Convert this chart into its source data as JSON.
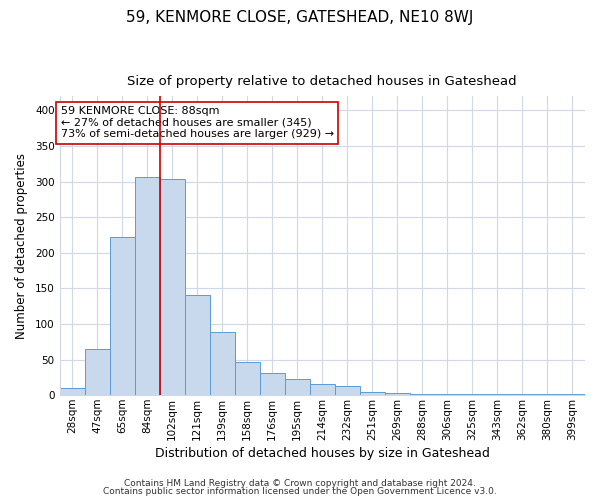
{
  "title": "59, KENMORE CLOSE, GATESHEAD, NE10 8WJ",
  "subtitle": "Size of property relative to detached houses in Gateshead",
  "xlabel": "Distribution of detached houses by size in Gateshead",
  "ylabel": "Number of detached properties",
  "bar_labels": [
    "28sqm",
    "47sqm",
    "65sqm",
    "84sqm",
    "102sqm",
    "121sqm",
    "139sqm",
    "158sqm",
    "176sqm",
    "195sqm",
    "214sqm",
    "232sqm",
    "251sqm",
    "269sqm",
    "288sqm",
    "306sqm",
    "325sqm",
    "343sqm",
    "362sqm",
    "380sqm",
    "399sqm"
  ],
  "bar_values": [
    10,
    65,
    222,
    307,
    304,
    141,
    89,
    46,
    31,
    23,
    16,
    13,
    5,
    3,
    2,
    1,
    1,
    1,
    1,
    1,
    1
  ],
  "bar_color": "#c8d9ee",
  "bar_edge_color": "#5b9bd5",
  "vline_x": 3.5,
  "vline_color": "#cc0000",
  "annotation_text": "59 KENMORE CLOSE: 88sqm\n← 27% of detached houses are smaller (345)\n73% of semi-detached houses are larger (929) →",
  "annotation_box_color": "#ffffff",
  "annotation_box_edge": "#cc0000",
  "footer1": "Contains HM Land Registry data © Crown copyright and database right 2024.",
  "footer2": "Contains public sector information licensed under the Open Government Licence v3.0.",
  "ylim": [
    0,
    420
  ],
  "title_fontsize": 11,
  "subtitle_fontsize": 9.5,
  "xlabel_fontsize": 9,
  "ylabel_fontsize": 8.5,
  "tick_fontsize": 7.5,
  "annotation_fontsize": 8,
  "footer_fontsize": 6.5,
  "background_color": "#ffffff",
  "grid_color": "#d0d8e8",
  "yticks": [
    0,
    50,
    100,
    150,
    200,
    250,
    300,
    350,
    400
  ]
}
